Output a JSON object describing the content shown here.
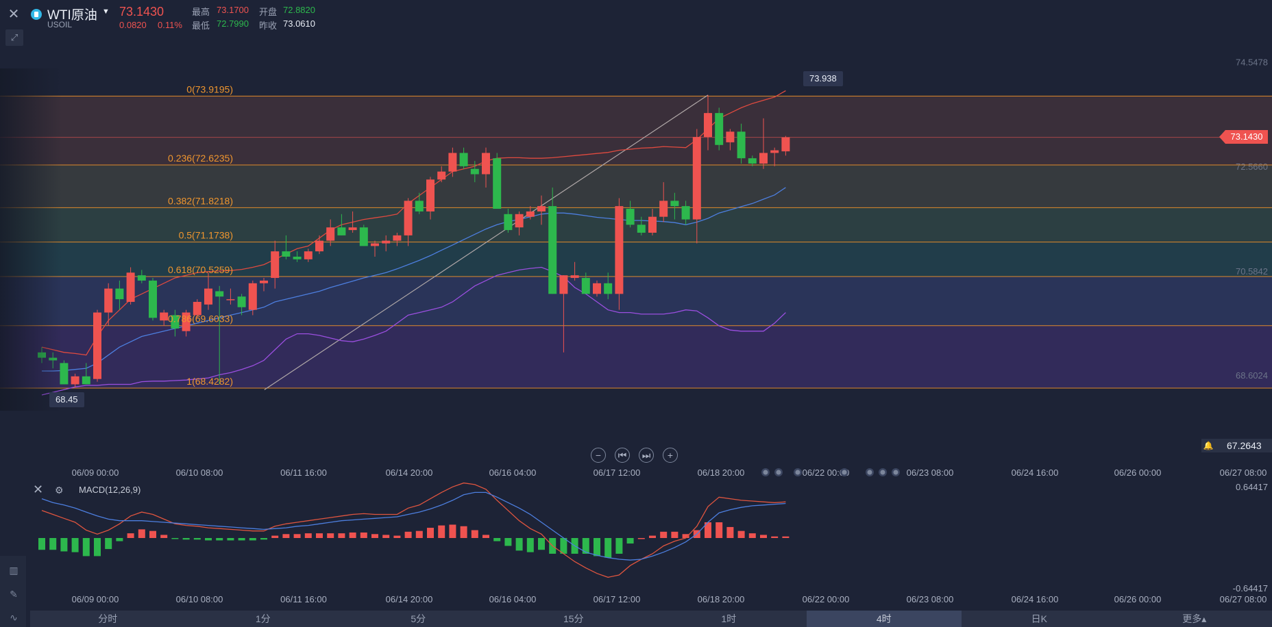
{
  "header": {
    "symbol_name": "WTI原油",
    "symbol_code": "USOIL",
    "last_price": "73.1430",
    "change": "0.0820",
    "change_pct": "0.11%",
    "high_label": "最高",
    "high": "73.1700",
    "open_label": "开盘",
    "open": "72.8820",
    "low_label": "最低",
    "low": "72.7990",
    "prev_close_label": "昨收",
    "prev_close": "73.0610"
  },
  "toolbar": {
    "close_icon": "close-icon",
    "draw_icon": "pencil-draw-icon",
    "zoom_out": "−",
    "zoom_in": "+",
    "prev": "⏮",
    "next": "⏭"
  },
  "price_tag": "73.1430",
  "alert": {
    "value": "67.2643"
  },
  "markers": {
    "high_marker": "73.938",
    "low_marker": "68.45"
  },
  "macd": {
    "title": "MACD(12,26,9)"
  },
  "timeframes": [
    {
      "label": "分时",
      "active": false
    },
    {
      "label": "1分",
      "active": false
    },
    {
      "label": "5分",
      "active": false
    },
    {
      "label": "15分",
      "active": false
    },
    {
      "label": "1时",
      "active": false
    },
    {
      "label": "4时",
      "active": true
    },
    {
      "label": "日K",
      "active": false
    },
    {
      "label": "更多▴",
      "active": false
    }
  ],
  "colors": {
    "up": "#ef5350",
    "down": "#2db84d",
    "fib_line": "#e08a2b",
    "fib_text": "#f0962e",
    "bb_upper": "#e04a3f",
    "bb_mid": "#4d7fe0",
    "bb_lower": "#9b4fe0",
    "macd_dif": "#e0553f",
    "macd_dea": "#4d7fe0"
  },
  "chart_data": {
    "type": "candlestick",
    "x_ticks": [
      "06/09 00:00",
      "06/10 08:00",
      "06/11 16:00",
      "06/14 20:00",
      "06/16 04:00",
      "06/17 12:00",
      "06/18 20:00",
      "06/22 00:00",
      "06/23 08:00",
      "06/24 16:00",
      "06/26 00:00",
      "06/27 08:00"
    ],
    "y_ticks": [
      "74.5478",
      "72.5660",
      "70.5842",
      "68.6024"
    ],
    "ylim": [
      67.2643,
      75.1
    ],
    "fibonacci": [
      {
        "label": "0(73.9195)",
        "value": 73.9195
      },
      {
        "label": "0.236(72.6235)",
        "value": 72.6235
      },
      {
        "label": "0.382(71.8218)",
        "value": 71.8218
      },
      {
        "label": "0.5(71.1738)",
        "value": 71.1738
      },
      {
        "label": "0.618(70.5259)",
        "value": 70.5259
      },
      {
        "label": "0.786(69.6033)",
        "value": 69.6033
      },
      {
        "label": "1(68.4282)",
        "value": 68.4282
      }
    ],
    "candles": [
      [
        69.1,
        69.2,
        68.9,
        69.0
      ],
      [
        69.0,
        69.1,
        68.8,
        68.95
      ],
      [
        68.9,
        68.95,
        68.5,
        68.5
      ],
      [
        68.5,
        68.7,
        68.45,
        68.65
      ],
      [
        68.65,
        68.9,
        68.5,
        68.5
      ],
      [
        68.6,
        69.9,
        68.55,
        69.85
      ],
      [
        69.85,
        70.4,
        69.6,
        70.3
      ],
      [
        70.3,
        70.45,
        69.9,
        70.1
      ],
      [
        70.05,
        70.7,
        70.0,
        70.6
      ],
      [
        70.55,
        70.65,
        70.4,
        70.45
      ],
      [
        70.45,
        70.5,
        69.7,
        69.75
      ],
      [
        69.7,
        69.9,
        69.6,
        69.85
      ],
      [
        69.8,
        69.9,
        69.4,
        69.55
      ],
      [
        69.5,
        69.9,
        69.4,
        69.85
      ],
      [
        69.8,
        70.1,
        69.75,
        70.05
      ],
      [
        70.0,
        70.6,
        69.9,
        70.3
      ],
      [
        70.25,
        70.35,
        68.5,
        70.15
      ],
      [
        70.1,
        70.3,
        70.0,
        70.1
      ],
      [
        70.15,
        70.2,
        69.8,
        69.95
      ],
      [
        69.9,
        70.45,
        69.8,
        70.4
      ],
      [
        70.4,
        70.5,
        70.25,
        70.45
      ],
      [
        70.5,
        71.2,
        70.3,
        71.0
      ],
      [
        71.0,
        71.3,
        70.85,
        70.9
      ],
      [
        70.9,
        71.0,
        70.8,
        70.85
      ],
      [
        70.85,
        71.05,
        70.8,
        71.0
      ],
      [
        71.0,
        71.3,
        70.95,
        71.2
      ],
      [
        71.2,
        71.6,
        71.1,
        71.45
      ],
      [
        71.45,
        71.7,
        71.3,
        71.3
      ],
      [
        71.4,
        71.75,
        71.35,
        71.45
      ],
      [
        71.45,
        71.5,
        71.1,
        71.1
      ],
      [
        71.1,
        71.2,
        70.9,
        71.15
      ],
      [
        71.15,
        71.3,
        71.0,
        71.2
      ],
      [
        71.2,
        71.35,
        71.1,
        71.3
      ],
      [
        71.3,
        72.0,
        71.1,
        71.95
      ],
      [
        71.95,
        72.1,
        71.7,
        71.75
      ],
      [
        71.75,
        72.4,
        71.6,
        72.35
      ],
      [
        72.35,
        72.6,
        72.3,
        72.5
      ],
      [
        72.5,
        72.95,
        72.4,
        72.85
      ],
      [
        72.85,
        72.95,
        72.55,
        72.6
      ],
      [
        72.55,
        72.7,
        72.3,
        72.45
      ],
      [
        72.45,
        72.95,
        72.2,
        72.85
      ],
      [
        72.75,
        72.85,
        71.8,
        71.8
      ],
      [
        71.7,
        71.8,
        71.35,
        71.4
      ],
      [
        71.45,
        71.75,
        71.3,
        71.7
      ],
      [
        71.65,
        71.85,
        71.6,
        71.75
      ],
      [
        71.75,
        72.05,
        71.5,
        71.85
      ],
      [
        71.85,
        72.2,
        70.2,
        70.2
      ],
      [
        70.2,
        70.55,
        69.1,
        70.55
      ],
      [
        70.5,
        70.8,
        70.45,
        70.55
      ],
      [
        70.5,
        70.6,
        70.2,
        70.2
      ],
      [
        70.2,
        70.45,
        70.15,
        70.4
      ],
      [
        70.4,
        70.6,
        70.1,
        70.2
      ],
      [
        70.2,
        72.0,
        69.9,
        71.85
      ],
      [
        71.8,
        71.95,
        71.45,
        71.5
      ],
      [
        71.5,
        71.65,
        71.3,
        71.35
      ],
      [
        71.35,
        71.8,
        71.3,
        71.65
      ],
      [
        71.65,
        72.3,
        71.55,
        71.95
      ],
      [
        71.95,
        72.1,
        71.6,
        71.85
      ],
      [
        71.85,
        71.95,
        71.5,
        71.6
      ],
      [
        71.6,
        73.3,
        71.15,
        73.15
      ],
      [
        73.15,
        73.94,
        72.9,
        73.6
      ],
      [
        73.6,
        73.7,
        72.9,
        73.0
      ],
      [
        73.05,
        73.3,
        72.9,
        73.25
      ],
      [
        73.25,
        73.4,
        72.65,
        72.75
      ],
      [
        72.75,
        72.8,
        72.6,
        72.65
      ],
      [
        72.65,
        73.5,
        72.55,
        72.85
      ],
      [
        72.85,
        72.95,
        72.6,
        72.9
      ],
      [
        72.88,
        73.17,
        72.8,
        73.143
      ]
    ],
    "bollinger_upper": [
      69.2,
      69.15,
      69.1,
      69.08,
      69.05,
      69.4,
      69.7,
      69.9,
      70.1,
      70.2,
      70.3,
      70.4,
      70.5,
      70.55,
      70.6,
      70.62,
      70.63,
      70.64,
      70.66,
      70.7,
      70.75,
      70.85,
      70.95,
      71.05,
      71.1,
      71.25,
      71.4,
      71.5,
      71.55,
      71.6,
      71.63,
      71.66,
      71.7,
      71.9,
      72.05,
      72.2,
      72.35,
      72.5,
      72.55,
      72.6,
      72.7,
      72.75,
      72.76,
      72.76,
      72.75,
      72.75,
      72.76,
      72.78,
      72.8,
      72.82,
      72.84,
      72.86,
      72.9,
      72.92,
      72.94,
      72.95,
      72.97,
      72.96,
      72.95,
      73.1,
      73.3,
      73.5,
      73.6,
      73.7,
      73.78,
      73.84,
      73.9,
      74.02
    ],
    "bollinger_mid": [
      68.75,
      68.75,
      68.76,
      68.78,
      68.8,
      68.9,
      69.05,
      69.2,
      69.3,
      69.4,
      69.45,
      69.5,
      69.55,
      69.6,
      69.65,
      69.7,
      69.75,
      69.8,
      69.85,
      69.9,
      69.95,
      70.05,
      70.1,
      70.15,
      70.2,
      70.25,
      70.32,
      70.38,
      70.44,
      70.5,
      70.55,
      70.6,
      70.67,
      70.75,
      70.83,
      70.92,
      71.02,
      71.12,
      71.22,
      71.32,
      71.42,
      71.5,
      71.56,
      71.6,
      71.65,
      71.7,
      71.72,
      71.72,
      71.7,
      71.67,
      71.64,
      71.62,
      71.6,
      71.58,
      71.58,
      71.57,
      71.56,
      71.54,
      71.5,
      71.55,
      71.62,
      71.72,
      71.78,
      71.84,
      71.9,
      71.98,
      72.06,
      72.2
    ],
    "bollinger_lower": [
      68.3,
      68.35,
      68.4,
      68.45,
      68.48,
      68.48,
      68.5,
      68.5,
      68.5,
      68.55,
      68.56,
      68.56,
      68.57,
      68.58,
      68.6,
      68.62,
      68.68,
      68.72,
      68.78,
      68.85,
      68.95,
      69.15,
      69.35,
      69.45,
      69.45,
      69.42,
      69.37,
      69.32,
      69.3,
      69.35,
      69.42,
      69.5,
      69.65,
      69.8,
      69.85,
      69.9,
      69.95,
      70.05,
      70.2,
      70.35,
      70.45,
      70.55,
      70.6,
      70.65,
      70.68,
      70.7,
      70.62,
      70.52,
      70.32,
      70.2,
      70.05,
      69.9,
      69.85,
      69.85,
      69.82,
      69.82,
      69.82,
      69.85,
      69.9,
      69.88,
      69.75,
      69.6,
      69.52,
      69.5,
      69.5,
      69.5,
      69.65,
      69.85
    ],
    "macd_range": [
      -0.64417,
      0.64417
    ],
    "macd_ticks": [
      "0.64417",
      "-0.64417"
    ],
    "macd_dif": [
      0.35,
      0.3,
      0.25,
      0.2,
      0.1,
      0.05,
      0.1,
      0.18,
      0.28,
      0.33,
      0.3,
      0.24,
      0.18,
      0.16,
      0.15,
      0.13,
      0.12,
      0.11,
      0.1,
      0.09,
      0.09,
      0.15,
      0.18,
      0.2,
      0.22,
      0.24,
      0.26,
      0.28,
      0.3,
      0.31,
      0.3,
      0.3,
      0.3,
      0.38,
      0.42,
      0.5,
      0.58,
      0.65,
      0.7,
      0.68,
      0.62,
      0.48,
      0.35,
      0.22,
      0.12,
      0.05,
      -0.1,
      -0.2,
      -0.3,
      -0.38,
      -0.45,
      -0.5,
      -0.47,
      -0.35,
      -0.27,
      -0.2,
      -0.1,
      -0.04,
      0.0,
      0.15,
      0.4,
      0.52,
      0.5,
      0.48,
      0.47,
      0.46,
      0.45,
      0.46
    ],
    "macd_dea": [
      0.5,
      0.45,
      0.42,
      0.38,
      0.33,
      0.28,
      0.24,
      0.22,
      0.22,
      0.22,
      0.21,
      0.2,
      0.19,
      0.18,
      0.17,
      0.16,
      0.15,
      0.14,
      0.13,
      0.12,
      0.11,
      0.12,
      0.13,
      0.15,
      0.16,
      0.18,
      0.2,
      0.22,
      0.23,
      0.24,
      0.25,
      0.26,
      0.27,
      0.3,
      0.33,
      0.37,
      0.42,
      0.48,
      0.55,
      0.58,
      0.58,
      0.52,
      0.45,
      0.38,
      0.3,
      0.2,
      0.1,
      0.0,
      -0.1,
      -0.18,
      -0.22,
      -0.25,
      -0.27,
      -0.28,
      -0.27,
      -0.23,
      -0.18,
      -0.12,
      -0.05,
      0.05,
      0.2,
      0.32,
      0.36,
      0.39,
      0.41,
      0.42,
      0.43,
      0.44
    ],
    "macd_hist": [
      -0.15,
      -0.15,
      -0.17,
      -0.18,
      -0.23,
      -0.23,
      -0.14,
      -0.04,
      0.06,
      0.11,
      0.09,
      0.04,
      -0.01,
      -0.02,
      -0.02,
      -0.03,
      -0.03,
      -0.03,
      -0.03,
      -0.03,
      -0.02,
      0.03,
      0.05,
      0.05,
      0.06,
      0.06,
      0.06,
      0.06,
      0.07,
      0.07,
      0.05,
      0.04,
      0.03,
      0.08,
      0.09,
      0.13,
      0.16,
      0.17,
      0.15,
      0.1,
      0.04,
      -0.04,
      -0.1,
      -0.16,
      -0.18,
      -0.15,
      -0.2,
      -0.2,
      -0.2,
      -0.2,
      -0.23,
      -0.25,
      -0.2,
      -0.07,
      0.0,
      0.03,
      0.08,
      0.08,
      0.05,
      0.1,
      0.2,
      0.2,
      0.14,
      0.09,
      0.06,
      0.04,
      0.02,
      0.02
    ]
  }
}
